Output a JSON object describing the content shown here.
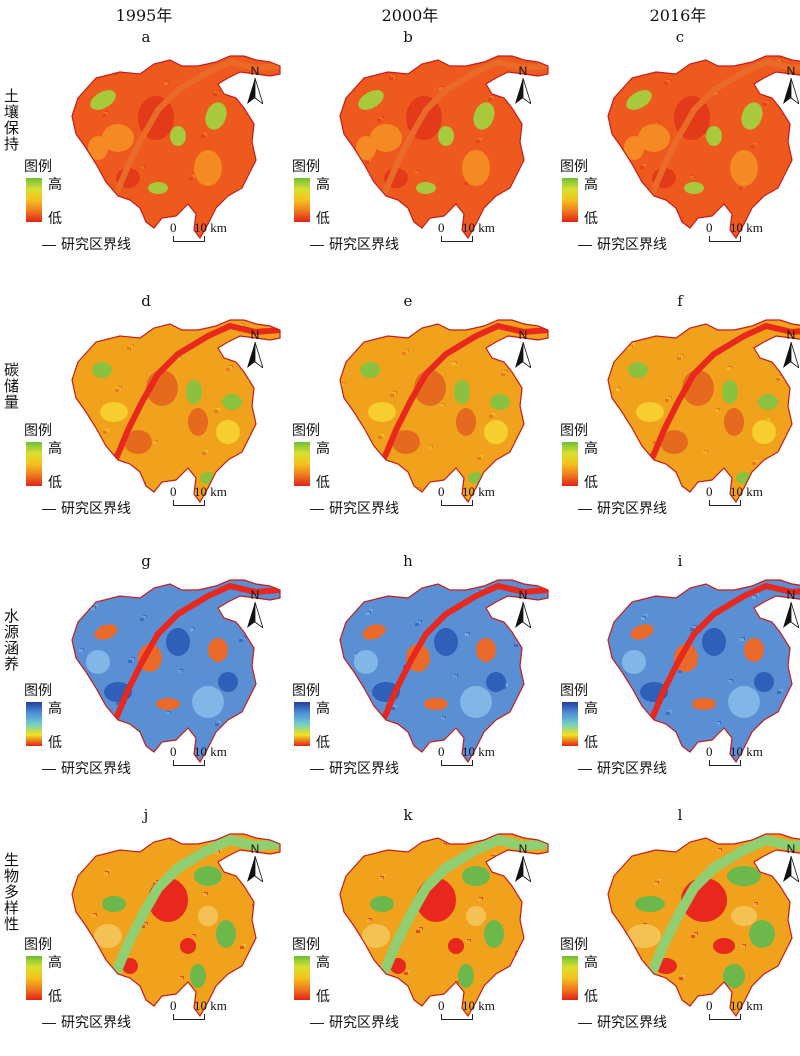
{
  "columns": [
    "1995年",
    "2000年",
    "2016年"
  ],
  "rows": [
    {
      "label": "土壤保持",
      "panels": [
        "a",
        "b",
        "c"
      ],
      "palette": "soil",
      "colors": {
        "base": "#ee5a1e",
        "dark": "#e33a19",
        "light": "#f58a24",
        "green": "#a8c93c",
        "river": "#ea6a28"
      }
    },
    {
      "label": "碳储量",
      "panels": [
        "d",
        "e",
        "f"
      ],
      "palette": "carbon",
      "colors": {
        "base": "#f0a21c",
        "dark": "#e66a1e",
        "light": "#f6cf2e",
        "green": "#8ac13f",
        "river": "#e8271d"
      }
    },
    {
      "label": "水源涵养",
      "panels": [
        "g",
        "h",
        "i"
      ],
      "palette": "water",
      "colors": {
        "base": "#5b8fd4",
        "dark": "#2f5fb8",
        "light": "#82b6e6",
        "green": "#e96a2a",
        "river": "#e8271d"
      }
    },
    {
      "label": "生物多样性",
      "panels": [
        "j",
        "k",
        "l"
      ],
      "palette": "bio",
      "colors": {
        "base": "#f0a21c",
        "dark": "#e8271d",
        "light": "#f4c254",
        "green": "#6cb84a",
        "river": "#8fcf72"
      }
    }
  ],
  "legend": {
    "title": "图例",
    "high": "高",
    "low": "低",
    "boundary": "研究区界线"
  },
  "scale": {
    "zero": "0",
    "ten": "10 km"
  },
  "north": "N"
}
